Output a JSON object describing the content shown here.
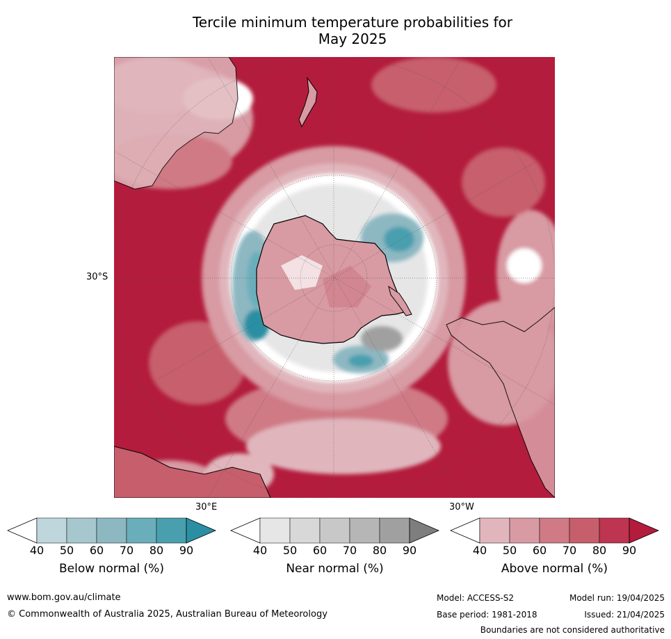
{
  "title_line1": "Tercile minimum temperature probabilities for",
  "title_line2": "May 2025",
  "map": {
    "lat_label": "30°S",
    "lon_label_east": "30°E",
    "lon_label_west": "30°W"
  },
  "legends": [
    {
      "title": "Below normal (%)",
      "ticks": [
        "40",
        "50",
        "60",
        "70",
        "80",
        "90"
      ],
      "colors": [
        "#ffffff",
        "#bfd6dc",
        "#a6c7ce",
        "#8db8c2",
        "#6aaebb",
        "#4a9fae",
        "#2b8fa3"
      ]
    },
    {
      "title": "Near normal (%)",
      "ticks": [
        "40",
        "50",
        "60",
        "70",
        "80",
        "90"
      ],
      "colors": [
        "#ffffff",
        "#e6e6e6",
        "#d8d8d8",
        "#c8c8c8",
        "#b6b6b6",
        "#a0a0a0",
        "#7e7e7e"
      ]
    },
    {
      "title": "Above normal (%)",
      "ticks": [
        "40",
        "50",
        "60",
        "70",
        "80",
        "90"
      ],
      "colors": [
        "#ffffff",
        "#e0b6bc",
        "#d89aa3",
        "#cf7a85",
        "#c75e6c",
        "#bd3550",
        "#b31c3c"
      ]
    }
  ],
  "footer": {
    "website": "www.bom.gov.au/climate",
    "copyright": "© Commonwealth of Australia 2025, Australian Bureau of Meteorology",
    "model": "Model: ACCESS-S2",
    "base_period": "Base period: 1981-2018",
    "model_run": "Model run: 19/04/2025",
    "issued": "Issued: 21/04/2025",
    "disclaimer": "Boundaries are not considered authoritative"
  }
}
